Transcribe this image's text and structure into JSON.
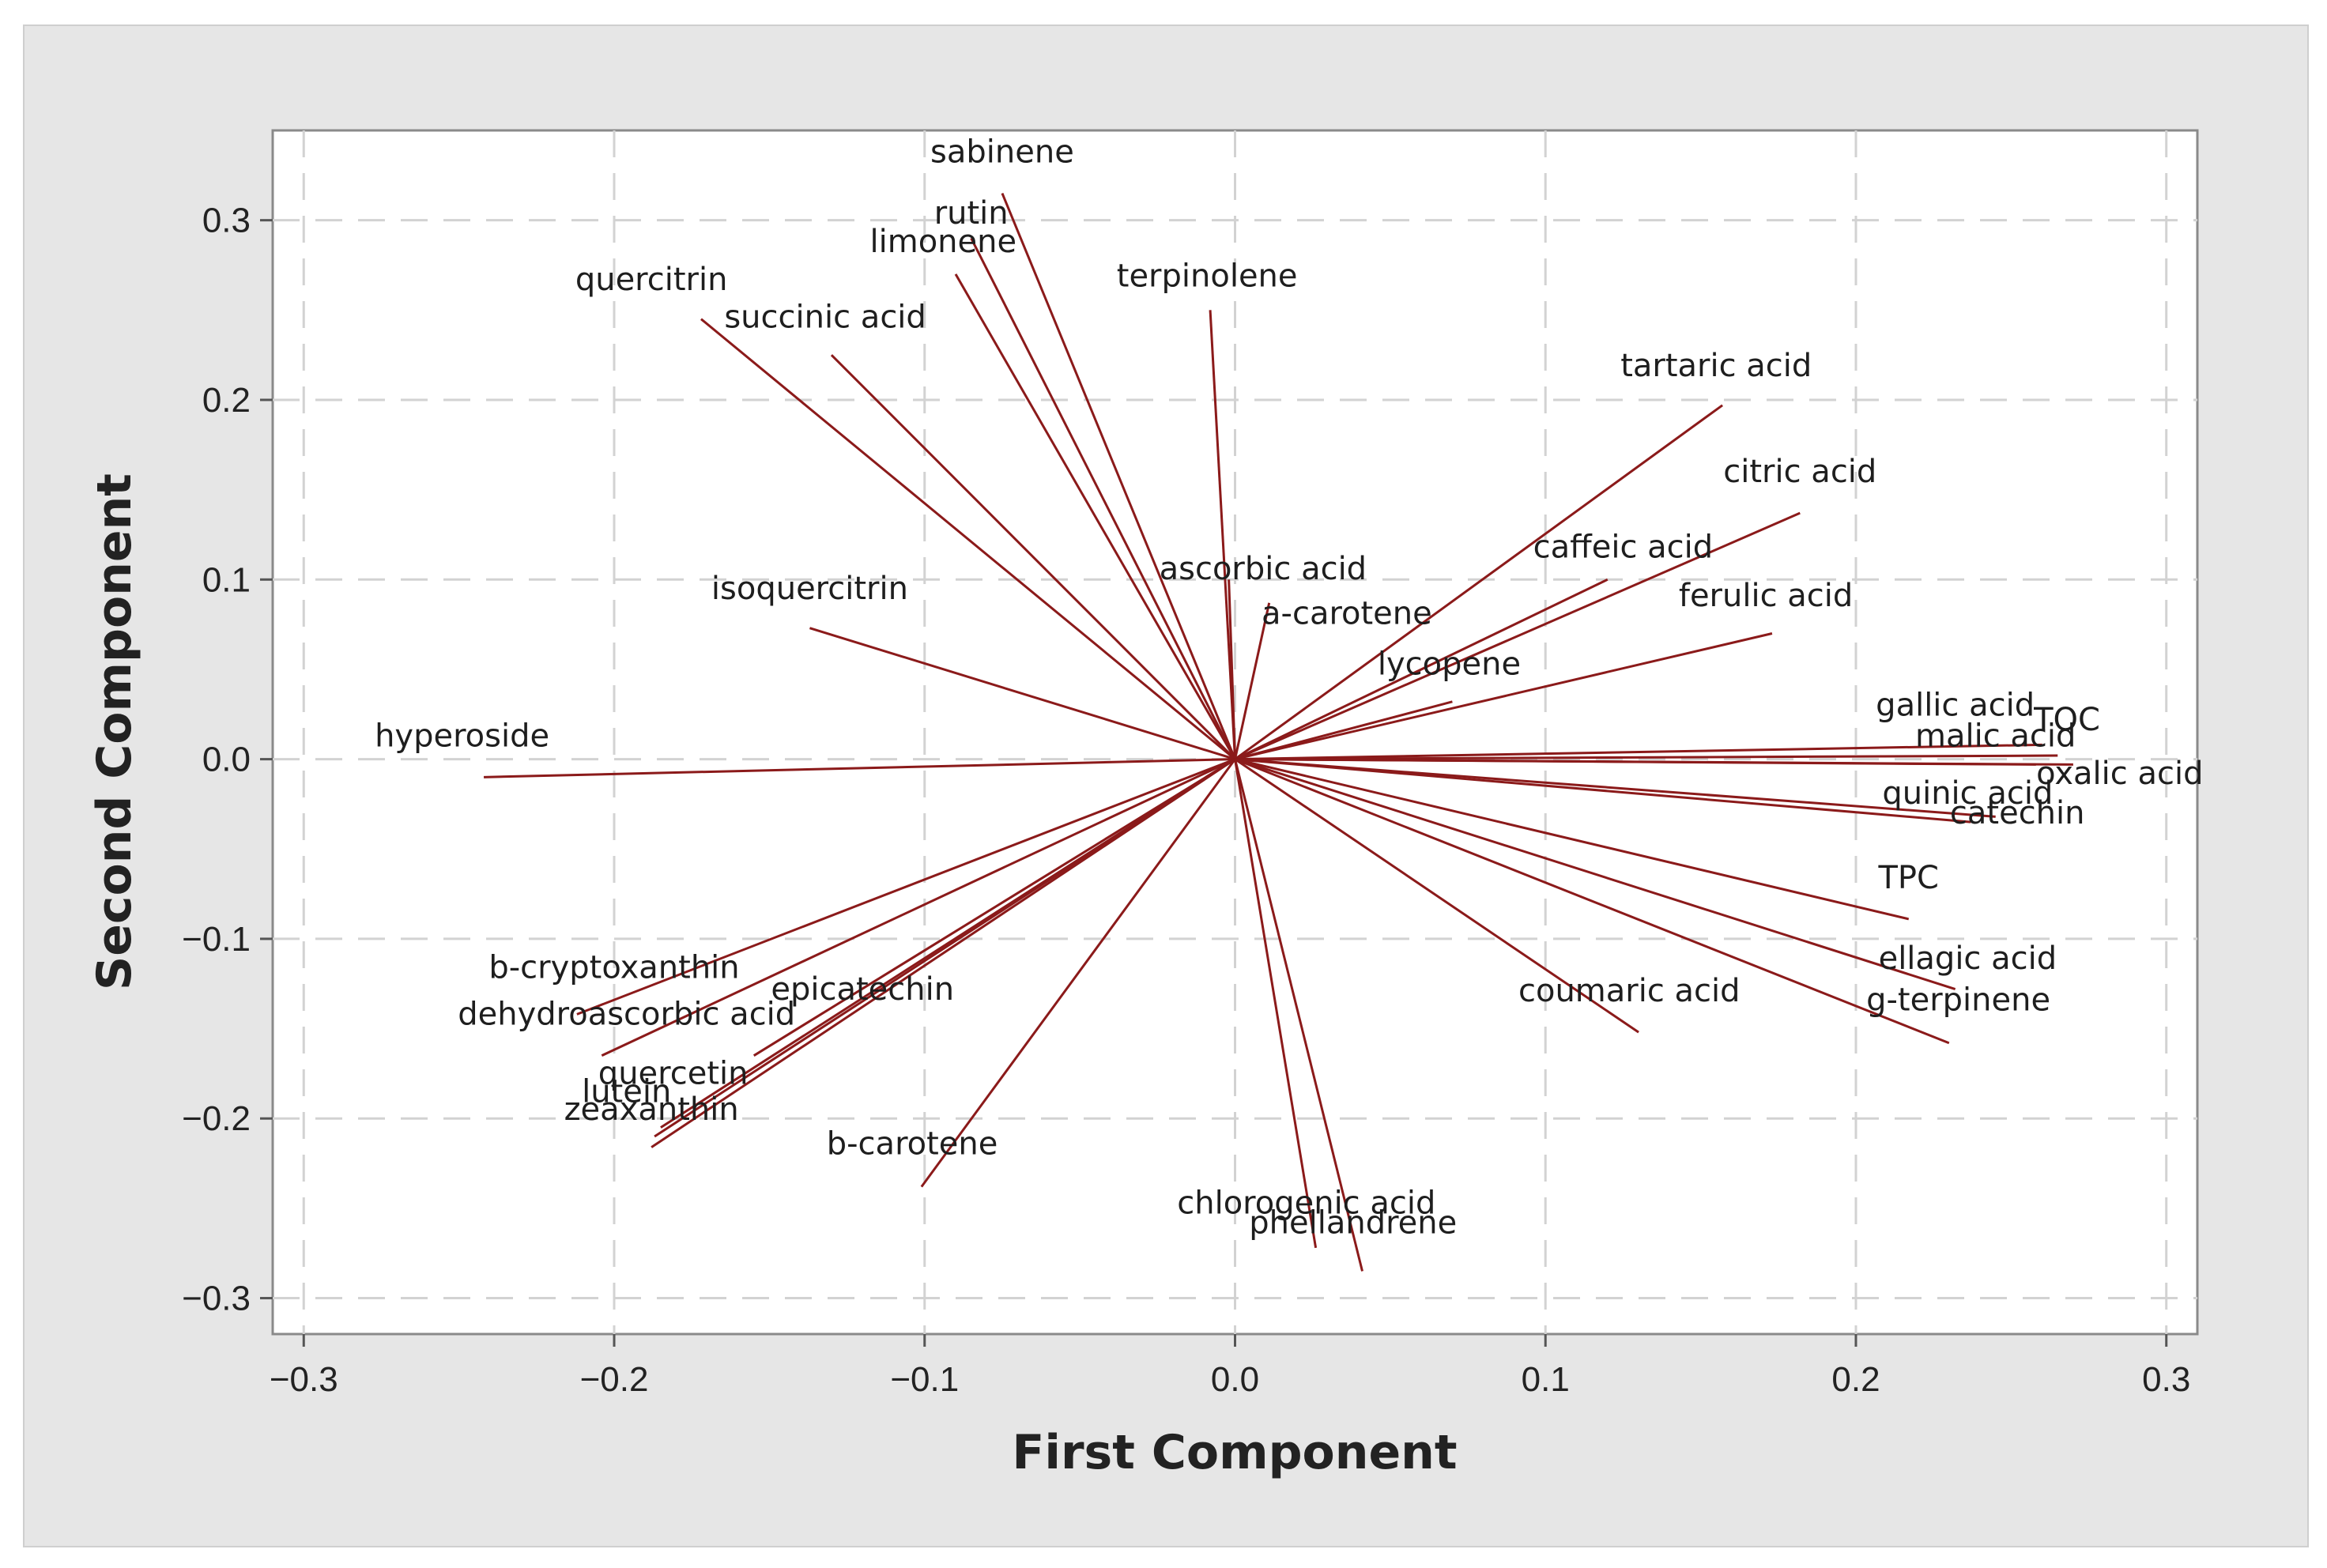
{
  "chart_data": {
    "type": "loading-plot",
    "xlabel": "First Component",
    "ylabel": "Second Component",
    "xlim": [
      -0.31,
      0.31
    ],
    "ylim": [
      -0.32,
      0.35
    ],
    "x_ticks": [
      {
        "value": -0.3,
        "label": "−0.3"
      },
      {
        "value": -0.2,
        "label": "−0.2"
      },
      {
        "value": -0.1,
        "label": "−0.1"
      },
      {
        "value": 0.0,
        "label": "0.0"
      },
      {
        "value": 0.1,
        "label": "0.1"
      },
      {
        "value": 0.2,
        "label": "0.2"
      },
      {
        "value": 0.3,
        "label": "0.3"
      }
    ],
    "y_ticks": [
      {
        "value": -0.3,
        "label": "−0.3"
      },
      {
        "value": -0.2,
        "label": "−0.2"
      },
      {
        "value": -0.1,
        "label": "−0.1"
      },
      {
        "value": 0.0,
        "label": "0.0"
      },
      {
        "value": 0.1,
        "label": "0.1"
      },
      {
        "value": 0.2,
        "label": "0.2"
      },
      {
        "value": 0.3,
        "label": "0.3"
      }
    ],
    "grid": true,
    "grid_style": "dashed",
    "line_color": "#8b1a1a",
    "background_color": "#e6e6e6",
    "plot_background_color": "#ffffff",
    "vectors": [
      {
        "name": "sabinene",
        "x": -0.075,
        "y": 0.315
      },
      {
        "name": "rutin",
        "x": -0.085,
        "y": 0.29
      },
      {
        "name": "limonene",
        "x": -0.09,
        "y": 0.27
      },
      {
        "name": "terpinolene",
        "x": -0.008,
        "y": 0.25
      },
      {
        "name": "quercitrin",
        "x": -0.172,
        "y": 0.245
      },
      {
        "name": "succinic acid",
        "x": -0.13,
        "y": 0.225
      },
      {
        "name": "tartaric acid",
        "x": 0.157,
        "y": 0.197
      },
      {
        "name": "citric acid",
        "x": 0.182,
        "y": 0.137
      },
      {
        "name": "caffeic acid",
        "x": 0.12,
        "y": 0.1
      },
      {
        "name": "ascorbic acid",
        "x": -0.002,
        "y": 0.1
      },
      {
        "name": "ferulic acid",
        "x": 0.173,
        "y": 0.07
      },
      {
        "name": "a-carotene",
        "x": 0.011,
        "y": 0.087
      },
      {
        "name": "lycopene",
        "x": 0.07,
        "y": 0.032
      },
      {
        "name": "isoquercitrin",
        "x": -0.137,
        "y": 0.073
      },
      {
        "name": "hyperoside",
        "x": -0.242,
        "y": -0.01
      },
      {
        "name": "gallic acid",
        "x": 0.26,
        "y": 0.008
      },
      {
        "name": "TOC",
        "x": 0.265,
        "y": 0.002
      },
      {
        "name": "malic acid",
        "x": 0.27,
        "y": -0.003
      },
      {
        "name": "oxalic acid",
        "x": 0.258,
        "y": -0.003
      },
      {
        "name": "quinic acid",
        "x": 0.245,
        "y": -0.032
      },
      {
        "name": "catechin",
        "x": 0.237,
        "y": -0.035
      },
      {
        "name": "TPC",
        "x": 0.217,
        "y": -0.089
      },
      {
        "name": "ellagic acid",
        "x": 0.232,
        "y": -0.128
      },
      {
        "name": "g-terpinene",
        "x": 0.23,
        "y": -0.158
      },
      {
        "name": "coumaric acid",
        "x": 0.13,
        "y": -0.152
      },
      {
        "name": "b-cryptoxanthin",
        "x": -0.212,
        "y": -0.142
      },
      {
        "name": "dehydroascorbic acid",
        "x": -0.204,
        "y": -0.165
      },
      {
        "name": "epicatechin",
        "x": -0.155,
        "y": -0.165
      },
      {
        "name": "quercetin",
        "x": -0.185,
        "y": -0.205
      },
      {
        "name": "lutein",
        "x": -0.187,
        "y": -0.21
      },
      {
        "name": "zeaxanthin",
        "x": -0.188,
        "y": -0.216
      },
      {
        "name": "b-carotene",
        "x": -0.101,
        "y": -0.238
      },
      {
        "name": "chlorogenic acid",
        "x": 0.026,
        "y": -0.272
      },
      {
        "name": "phellandrene",
        "x": 0.041,
        "y": -0.285
      }
    ],
    "labels": [
      {
        "text": "sabinene",
        "x": -0.075,
        "y": 0.337
      },
      {
        "text": "rutin",
        "x": -0.085,
        "y": 0.303
      },
      {
        "text": "limonene",
        "x": -0.094,
        "y": 0.287
      },
      {
        "text": "terpinolene",
        "x": -0.009,
        "y": 0.268
      },
      {
        "text": "quercitrin",
        "x": -0.188,
        "y": 0.266
      },
      {
        "text": "succinic acid",
        "x": -0.132,
        "y": 0.245
      },
      {
        "text": "tartaric acid",
        "x": 0.155,
        "y": 0.218
      },
      {
        "text": "citric acid",
        "x": 0.182,
        "y": 0.159
      },
      {
        "text": "caffeic acid",
        "x": 0.125,
        "y": 0.117
      },
      {
        "text": "ascorbic acid",
        "x": 0.009,
        "y": 0.105
      },
      {
        "text": "ferulic acid",
        "x": 0.171,
        "y": 0.09
      },
      {
        "text": "a-carotene",
        "x": 0.036,
        "y": 0.08
      },
      {
        "text": "lycopene",
        "x": 0.069,
        "y": 0.052
      },
      {
        "text": "isoquercitrin",
        "x": -0.137,
        "y": 0.094
      },
      {
        "text": "hyperoside",
        "x": -0.249,
        "y": 0.012
      },
      {
        "text": "gallic acid",
        "x": 0.232,
        "y": 0.029
      },
      {
        "text": "TOC",
        "x": 0.268,
        "y": 0.021
      },
      {
        "text": "malic acid",
        "x": 0.245,
        "y": 0.012
      },
      {
        "text": "oxalic acid",
        "x": 0.285,
        "y": -0.009
      },
      {
        "text": "quinic acid",
        "x": 0.236,
        "y": -0.02
      },
      {
        "text": "catechin",
        "x": 0.252,
        "y": -0.031
      },
      {
        "text": "TPC",
        "x": 0.217,
        "y": -0.067
      },
      {
        "text": "ellagic acid",
        "x": 0.236,
        "y": -0.112
      },
      {
        "text": "g-terpinene",
        "x": 0.233,
        "y": -0.135
      },
      {
        "text": "coumaric acid",
        "x": 0.127,
        "y": -0.13
      },
      {
        "text": "b-cryptoxanthin",
        "x": -0.2,
        "y": -0.117
      },
      {
        "text": "dehydroascorbic acid",
        "x": -0.196,
        "y": -0.143
      },
      {
        "text": "epicatechin",
        "x": -0.12,
        "y": -0.129
      },
      {
        "text": "quercetin",
        "x": -0.181,
        "y": -0.176
      },
      {
        "text": "lutein",
        "x": -0.196,
        "y": -0.186
      },
      {
        "text": "zeaxanthin",
        "x": -0.188,
        "y": -0.196
      },
      {
        "text": "b-carotene",
        "x": -0.104,
        "y": -0.215
      },
      {
        "text": "chlorogenic acid",
        "x": 0.023,
        "y": -0.248
      },
      {
        "text": "phellandrene",
        "x": 0.038,
        "y": -0.259
      }
    ]
  }
}
